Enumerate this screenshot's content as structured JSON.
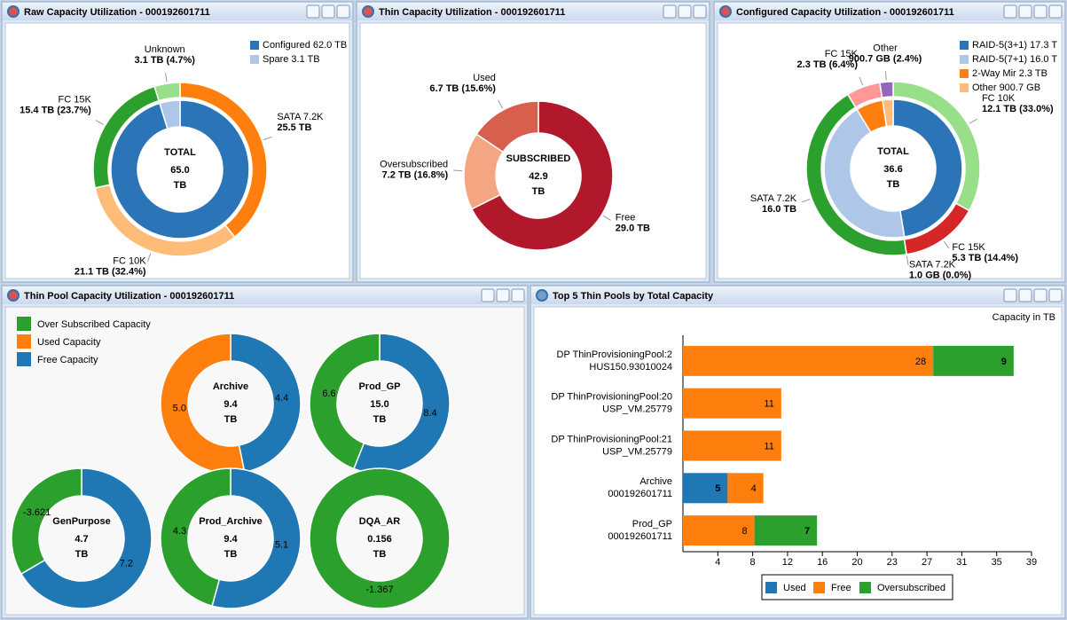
{
  "chart_data": [
    {
      "type": "donut",
      "title": "Raw Capacity Utilization - 000192601711",
      "center": {
        "label": "TOTAL",
        "value": 65,
        "value_label": "65.0",
        "unit": "TB"
      },
      "inner": {
        "names": [
          "Configured 62.0 TB",
          "Spare 3.1 TB"
        ],
        "values": [
          62,
          3.1
        ],
        "colors": [
          "#2b74b8",
          "#aec7e8"
        ]
      },
      "outer": {
        "categories": [
          "SATA 7.2K",
          "FC 10K",
          "FC 15K",
          "Unknown"
        ],
        "values": [
          25.5,
          21.1,
          15.4,
          3.1
        ],
        "value_labels": [
          "25.5 TB",
          "21.1 TB (32.4%)",
          "15.4 TB (23.7%)",
          "3.1 TB (4.7%)"
        ],
        "colors": [
          "#ff7f0e",
          "#ffbb78",
          "#2ca02c",
          "#98df8a"
        ]
      },
      "legend": "top-right"
    },
    {
      "type": "donut",
      "title": "Thin Capacity Utilization - 000192601711",
      "center": {
        "label": "SUBSCRIBED",
        "value": 42.9,
        "unit": "TB"
      },
      "outer": {
        "categories": [
          "Free",
          "Oversubscribed",
          "Used"
        ],
        "values": [
          29,
          7.2,
          6.7
        ],
        "value_labels": [
          "29.0 TB",
          "7.2 TB (16.8%)",
          "6.7 TB (15.6%)"
        ],
        "colors": [
          "#b2182b",
          "#f4a582",
          "#d6604d"
        ]
      }
    },
    {
      "type": "donut",
      "title": "Configured Capacity Utilization - 000192601711",
      "center": {
        "label": "TOTAL",
        "value": 36.6,
        "unit": "TB"
      },
      "inner": {
        "names": [
          "RAID-5(3+1) 17.3 T",
          "RAID-5(7+1) 16.0 T",
          "2-Way Mir 2.3 TB",
          "Other 900.7 GB"
        ],
        "values": [
          17.3,
          16,
          2.3,
          0.9007
        ],
        "colors": [
          "#2b74b8",
          "#aec7e8",
          "#ff7f0e",
          "#ffbb78"
        ]
      },
      "outer": {
        "categories": [
          "FC 10K",
          "FC 15K",
          "SATA 7.2K",
          "SATA 7.2K",
          "FC 15K",
          "Other"
        ],
        "values": [
          12.1,
          5.3,
          0.001,
          16,
          2.3,
          0.9007
        ],
        "value_labels": [
          "12.1 TB (33.0%)",
          "5.3 TB (14.4%)",
          "1.0 GB (0.0%)",
          "16.0 TB",
          "2.3 TB (6.4%)",
          "900.7 GB (2.4%)"
        ],
        "colors": [
          "#98df8a",
          "#d62728",
          "#1f77b4",
          "#2ca02c",
          "#ff9896",
          "#9467bd"
        ]
      },
      "legend": "top-right"
    },
    {
      "type": "donut_grid",
      "title": "Thin Pool Capacity Utilization - 000192601711",
      "categories": [
        "Archive",
        "Prod_GP",
        "GenPurpose",
        "Prod_Archive",
        "DQA_AR"
      ],
      "totals": [
        9.4,
        15,
        4.7,
        9.4,
        0.156
      ],
      "total_labels": [
        "9.4",
        "15.0",
        "4.7",
        "9.4",
        "0.156"
      ],
      "unit": "TB",
      "series": [
        {
          "name": "Over Subscribed Capacity",
          "color": "#2ca02c",
          "values": [
            null,
            6.6,
            -3.621,
            4.3,
            -1.367
          ]
        },
        {
          "name": "Used Capacity",
          "color": "#ff7f0e",
          "values": [
            5,
            null,
            null,
            null,
            null
          ],
          "value_labels": [
            "5.0",
            null,
            null,
            null,
            null
          ]
        },
        {
          "name": "Free Capacity",
          "color": "#1f77b4",
          "values": [
            4.4,
            8.4,
            7.2,
            5.1,
            null
          ]
        }
      ],
      "legend": "top-left"
    },
    {
      "type": "bar",
      "orientation": "horizontal",
      "stacked": true,
      "title": "Top 5 Thin Pools by Total Capacity",
      "note": "Capacity in TB",
      "categories": [
        [
          "DP ThinProvisioningPool:2",
          "HUS150.93010024"
        ],
        [
          "DP ThinProvisioningPool:20",
          "USP_VM.25779"
        ],
        [
          "DP ThinProvisioningPool:21",
          "USP_VM.25779"
        ],
        [
          "Archive",
          "000192601711"
        ],
        [
          "Prod_GP",
          "000192601711"
        ]
      ],
      "series": [
        {
          "name": "Used",
          "color": "#1f77b4",
          "values": [
            null,
            null,
            null,
            5,
            null
          ]
        },
        {
          "name": "Free",
          "color": "#ff7f0e",
          "values": [
            28,
            11,
            11,
            4,
            8
          ]
        },
        {
          "name": "Oversubscribed",
          "color": "#2ca02c",
          "values": [
            9,
            null,
            null,
            null,
            7
          ]
        }
      ],
      "xlim": [
        0,
        39
      ],
      "xticks": [
        {
          "value": 3.9,
          "label": "4"
        },
        {
          "value": 7.8,
          "label": "8"
        },
        {
          "value": 11.7,
          "label": "12"
        },
        {
          "value": 15.6,
          "label": "16"
        },
        {
          "value": 19.5,
          "label": "20"
        },
        {
          "value": 23.4,
          "label": "23"
        },
        {
          "value": 27.3,
          "label": "27"
        },
        {
          "value": 31.2,
          "label": "31"
        },
        {
          "value": 35.1,
          "label": "35"
        },
        {
          "value": 39,
          "label": "39"
        }
      ],
      "legend": "bottom"
    }
  ]
}
